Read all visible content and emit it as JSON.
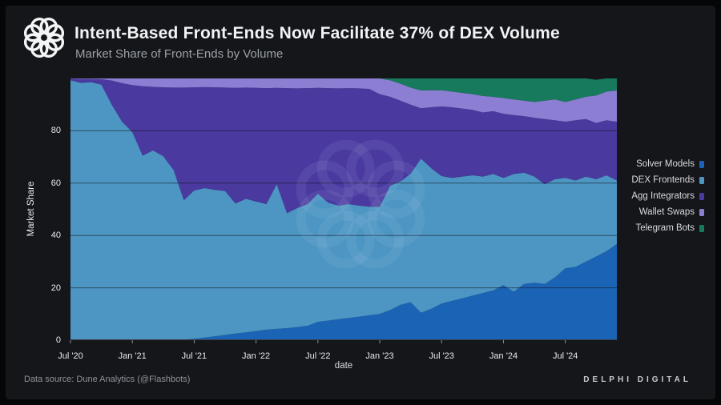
{
  "header": {
    "title": "Intent-Based Front-Ends Now Facilitate 37% of DEX Volume",
    "subtitle": "Market Share of Front-Ends by Volume"
  },
  "legend": [
    {
      "label": "Solver Models",
      "color": "#1b64b5"
    },
    {
      "label": "DEX Frontends",
      "color": "#4d96c3"
    },
    {
      "label": "Agg Integrators",
      "color": "#4a3aa0"
    },
    {
      "label": "Wallet Swaps",
      "color": "#8b7ed3"
    },
    {
      "label": "Telegram Bots",
      "color": "#177a5d"
    }
  ],
  "footer": {
    "source": "Data source: Dune Analytics (@Flashbots)",
    "brand": "DELPHI DIGITAL"
  },
  "colors": {
    "background": "#15161a",
    "grid": "#0e1013",
    "tick_text": "#e6e9ec",
    "title_text": "#f2f3f5",
    "subtitle_text": "#9aa1a8"
  },
  "chart_data": {
    "type": "area",
    "stacked": true,
    "title": "Market Share of Front-Ends by Volume",
    "xlabel": "date",
    "ylabel": "Market Share",
    "ylim": [
      0,
      100
    ],
    "grid": true,
    "legend_position": "right",
    "x": [
      "2020-07",
      "2020-08",
      "2020-09",
      "2020-10",
      "2020-11",
      "2020-12",
      "2021-01",
      "2021-02",
      "2021-03",
      "2021-04",
      "2021-05",
      "2021-06",
      "2021-07",
      "2021-08",
      "2021-09",
      "2021-10",
      "2021-11",
      "2021-12",
      "2022-01",
      "2022-02",
      "2022-03",
      "2022-04",
      "2022-05",
      "2022-06",
      "2022-07",
      "2022-08",
      "2022-09",
      "2022-10",
      "2022-11",
      "2022-12",
      "2023-01",
      "2023-02",
      "2023-03",
      "2023-04",
      "2023-05",
      "2023-06",
      "2023-07",
      "2023-08",
      "2023-09",
      "2023-10",
      "2023-11",
      "2023-12",
      "2024-01",
      "2024-02",
      "2024-03",
      "2024-04",
      "2024-05",
      "2024-06",
      "2024-07",
      "2024-08",
      "2024-09",
      "2024-10",
      "2024-11",
      "2024-12"
    ],
    "x_ticks": [
      {
        "i": 0,
        "label": "Jul '20"
      },
      {
        "i": 6,
        "label": "Jan '21"
      },
      {
        "i": 12,
        "label": "Jul '21"
      },
      {
        "i": 18,
        "label": "Jan '22"
      },
      {
        "i": 24,
        "label": "Jul '22"
      },
      {
        "i": 30,
        "label": "Jan '23"
      },
      {
        "i": 36,
        "label": "Jul '23"
      },
      {
        "i": 42,
        "label": "Jan '24"
      },
      {
        "i": 48,
        "label": "Jul '24"
      }
    ],
    "y_ticks": [
      0,
      20,
      40,
      60,
      80
    ],
    "series": [
      {
        "name": "Solver Models",
        "color": "#1b64b5",
        "values": [
          0,
          0,
          0,
          0,
          0,
          0,
          0,
          0,
          0,
          0,
          0,
          0.2,
          0.5,
          1,
          1.5,
          2,
          2.5,
          3,
          3.5,
          4,
          4.3,
          4.6,
          5,
          5.5,
          7,
          7.5,
          8,
          8.5,
          9,
          9.5,
          10,
          11.5,
          13.5,
          14.5,
          10.5,
          12,
          14,
          15,
          16,
          17,
          18,
          19,
          21,
          18.5,
          21.5,
          22,
          21.5,
          24,
          27.5,
          28,
          30,
          32,
          34,
          36.8
        ]
      },
      {
        "name": "DEX Frontends",
        "color": "#4d96c3",
        "values": [
          99.3,
          98.3,
          98.6,
          97.6,
          90,
          83.5,
          79.5,
          70.5,
          72.5,
          70.3,
          65,
          53.3,
          56.7,
          57.1,
          55.9,
          55,
          49.7,
          51,
          49.5,
          48,
          55.3,
          43.9,
          45.5,
          46.5,
          49,
          45,
          43.4,
          43.5,
          42.4,
          41.5,
          41,
          47.5,
          47.1,
          49.1,
          58.9,
          53.7,
          48.7,
          47,
          46.5,
          46,
          44.5,
          44.5,
          41,
          45,
          42.5,
          40.5,
          38.1,
          37.5,
          34.5,
          33,
          32.5,
          29.5,
          29,
          24.2
        ]
      },
      {
        "name": "Agg Integrators",
        "color": "#4a3aa0",
        "values": [
          0.6,
          1.5,
          1.2,
          2.1,
          9.2,
          14.7,
          18,
          26.5,
          24.3,
          26.3,
          31.5,
          43,
          39.4,
          38.6,
          39.2,
          39.5,
          44.2,
          42.5,
          43.4,
          44.3,
          36.8,
          47.8,
          45.7,
          44.3,
          40.4,
          43.8,
          44.8,
          44.3,
          44.8,
          45,
          43,
          34,
          30.9,
          26.4,
          19.2,
          23.3,
          26.6,
          27,
          26,
          25,
          24.5,
          24,
          24.5,
          22.5,
          21.6,
          22.5,
          24.9,
          22.5,
          21.5,
          23,
          22,
          21.5,
          21,
          22.5
        ]
      },
      {
        "name": "Wallet Swaps",
        "color": "#8b7ed3",
        "values": [
          0.1,
          0.2,
          0.2,
          0.3,
          0.8,
          1.8,
          2.5,
          3,
          3.2,
          3.4,
          3.5,
          3.5,
          3.4,
          3.3,
          3.4,
          3.5,
          3.6,
          3.5,
          3.6,
          3.7,
          3.6,
          3.7,
          3.8,
          3.7,
          3.6,
          3.7,
          3.8,
          3.7,
          3.8,
          4,
          6,
          6.3,
          6.5,
          6.5,
          6.8,
          6.5,
          6.2,
          6,
          6,
          6,
          6.3,
          5.5,
          6,
          6,
          5.9,
          6,
          7,
          8,
          7.5,
          8,
          8.5,
          10.5,
          11,
          11.9
        ]
      },
      {
        "name": "Telegram Bots",
        "color": "#177a5d",
        "values": [
          0,
          0,
          0,
          0,
          0,
          0,
          0,
          0,
          0,
          0,
          0,
          0,
          0,
          0,
          0,
          0,
          0,
          0,
          0,
          0,
          0,
          0,
          0,
          0,
          0,
          0,
          0,
          0,
          0,
          0,
          0,
          0.7,
          2,
          3.5,
          4.6,
          4.5,
          4.5,
          5,
          5.5,
          6,
          6.7,
          7,
          7.5,
          8,
          8.5,
          9,
          8.5,
          8,
          9,
          8,
          7,
          6,
          5,
          4.6
        ]
      }
    ]
  }
}
